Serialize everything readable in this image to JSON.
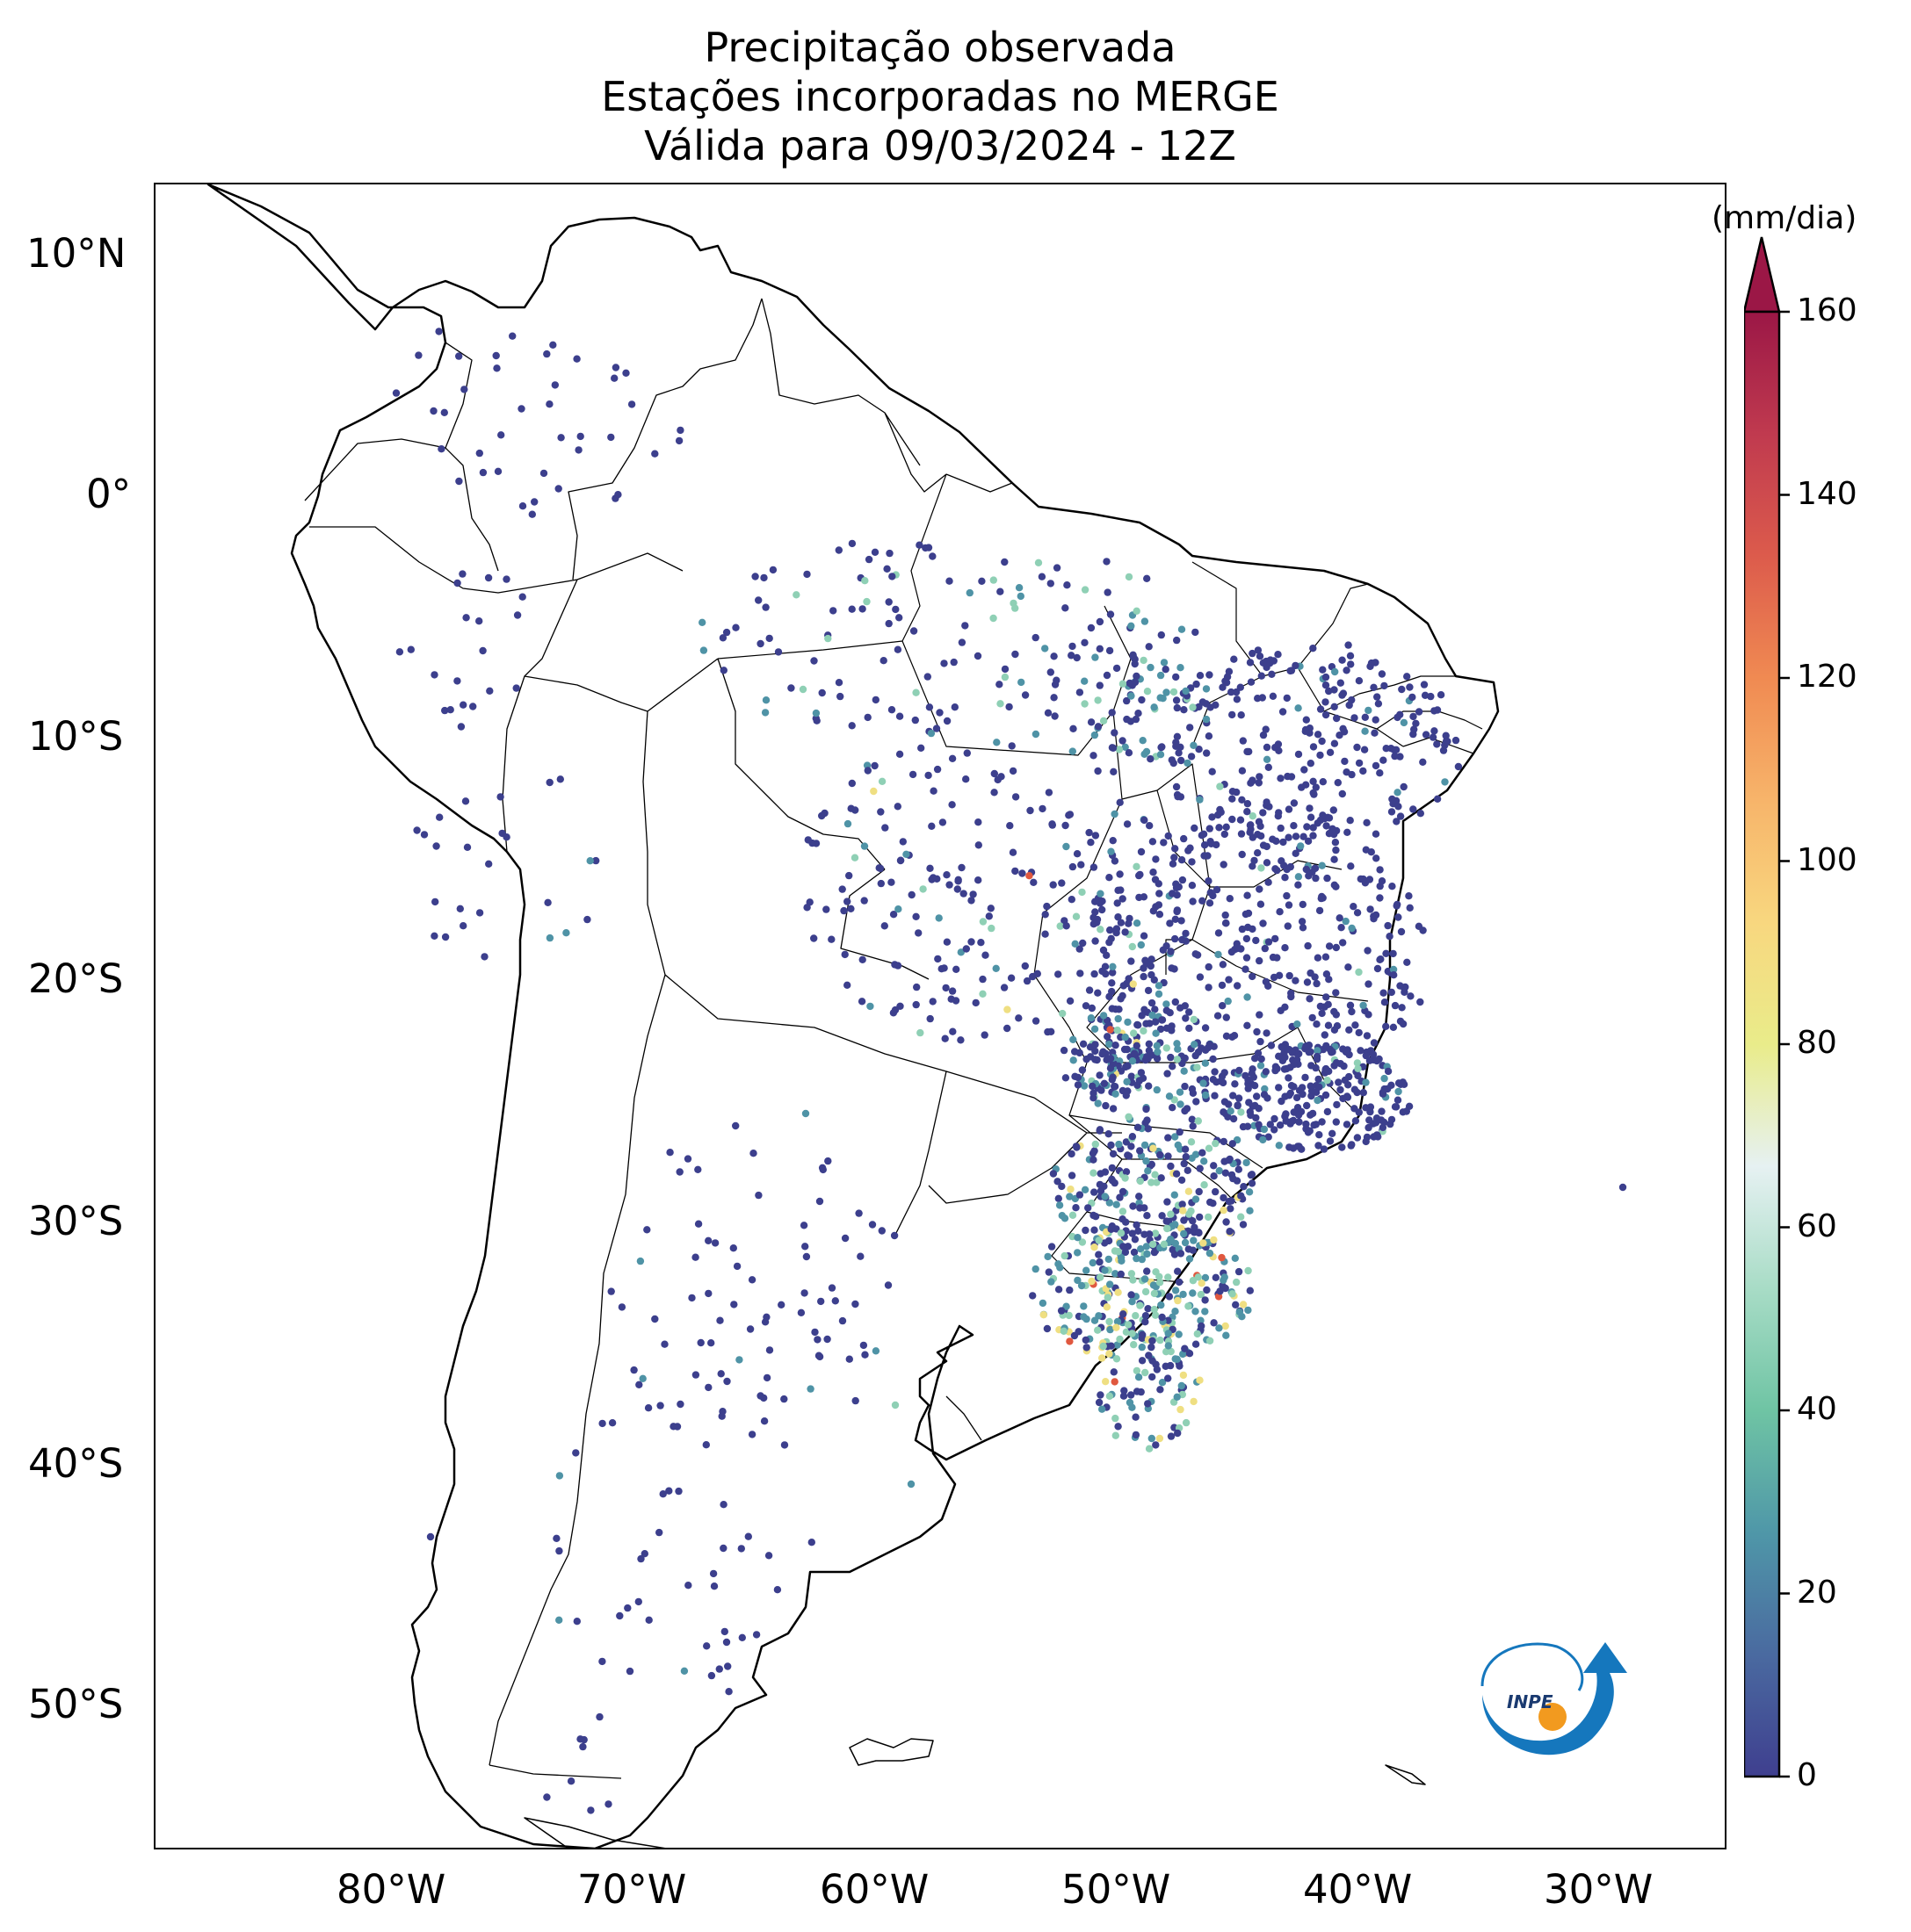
{
  "title": {
    "line1": "Precipitação observada",
    "line2": "Estações incorporadas no MERGE",
    "line3": "Válida para 09/03/2024 - 12Z"
  },
  "axes": {
    "lat_labels": [
      "10°N",
      "0°",
      "10°S",
      "20°S",
      "30°S",
      "40°S",
      "50°S"
    ],
    "lon_labels": [
      "80°W",
      "70°W",
      "60°W",
      "50°W",
      "40°W",
      "30°W"
    ]
  },
  "colorbar": {
    "unit": "(mm/dia)",
    "ticks": [
      "0",
      "20",
      "40",
      "60",
      "80",
      "100",
      "120",
      "140",
      "160"
    ],
    "extend": "max",
    "colors": [
      "#3f3f8f",
      "#4a6aa0",
      "#4f97a8",
      "#6fc4a4",
      "#a8dcc6",
      "#e6f1f2",
      "#e9ec8a",
      "#f8d77f",
      "#f7b46a",
      "#f08a52",
      "#dc5b4c",
      "#c03a4f",
      "#9b1746"
    ]
  },
  "map": {
    "lon_range": [
      -90,
      -25
    ],
    "lat_range": [
      -56,
      13
    ],
    "marker_palette": {
      "light": "#3c3f8d",
      "moderate": "#4f93a6",
      "heavy": "#8fd0b5",
      "very_heavy": "#efdf82",
      "extreme": "#e0583f"
    }
  },
  "logo": {
    "text": "INPE",
    "colors": {
      "blue": "#1577bd",
      "orange": "#f29a1f"
    }
  }
}
